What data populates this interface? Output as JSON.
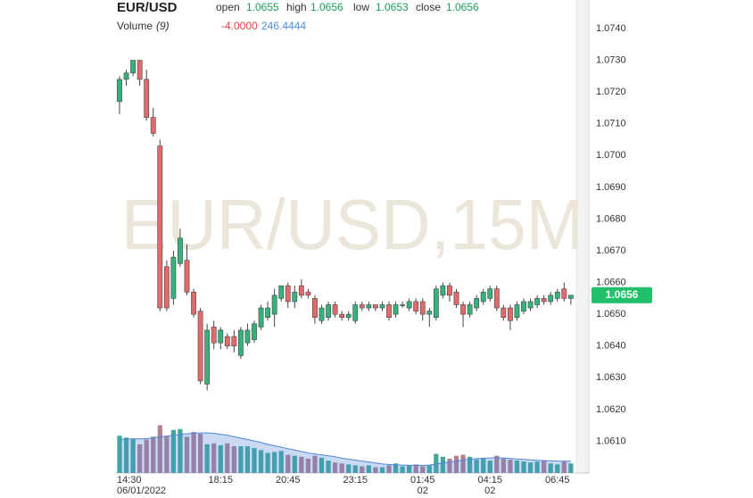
{
  "chart_data": {
    "type": "candlestick",
    "title": "EUR/USD",
    "watermark": "EUR/USD,15M",
    "header": {
      "open": "open",
      "high": "high",
      "low": "low",
      "close": "close",
      "volume_label": "Volume",
      "volume_period": "(9)",
      "volume_change": "-4.0000"
    },
    "categories": [
      "14:30",
      null,
      null,
      null,
      null,
      null,
      null,
      null,
      null,
      null,
      null,
      null,
      null,
      null,
      null,
      "18:15",
      null,
      null,
      null,
      null,
      null,
      null,
      null,
      null,
      null,
      "20:45",
      null,
      null,
      null,
      null,
      null,
      null,
      null,
      null,
      null,
      "23:15",
      null,
      null,
      null,
      null,
      null,
      null,
      null,
      null,
      null,
      "01:45",
      null,
      null,
      null,
      null,
      null,
      null,
      null,
      null,
      null,
      "04:15",
      null,
      null,
      null,
      null,
      null,
      null,
      null,
      null,
      null,
      "06:45",
      null,
      null
    ],
    "category_sublabels": [
      "06/01/2022",
      null,
      null,
      null,
      null,
      null,
      null,
      null,
      null,
      null,
      null,
      null,
      null,
      null,
      null,
      null,
      null,
      null,
      null,
      null,
      null,
      null,
      null,
      null,
      null,
      null,
      null,
      null,
      null,
      null,
      null,
      null,
      null,
      null,
      null,
      null,
      null,
      null,
      null,
      null,
      null,
      null,
      null,
      null,
      null,
      "02",
      null,
      null,
      null,
      null,
      null,
      null,
      null,
      null,
      null,
      "02",
      null,
      null,
      null,
      null,
      null,
      null,
      null,
      null,
      null,
      null,
      null,
      null
    ],
    "open": [
      1.0717,
      1.0724,
      1.0726,
      1.073,
      1.0724,
      1.0712,
      1.0703,
      1.0665,
      1.0655,
      1.0666,
      1.0667,
      1.0657,
      1.0651,
      1.0628,
      1.0646,
      1.0641,
      1.0643,
      1.0643,
      1.0637,
      1.0641,
      1.0642,
      1.0646,
      1.0649,
      1.065,
      1.0655,
      1.0659,
      1.0654,
      1.0659,
      1.0657,
      1.0655,
      1.0648,
      1.0649,
      1.0653,
      1.065,
      1.0649,
      1.0648,
      1.0653,
      1.0652,
      1.0653,
      1.0652,
      1.0653,
      1.065,
      1.0653,
      1.0652,
      1.0654,
      1.0654,
      1.065,
      1.0649,
      1.0656,
      1.0659,
      1.0657,
      1.0653,
      1.065,
      1.0652,
      1.0654,
      1.0655,
      1.0658,
      1.0652,
      1.0652,
      1.0649,
      1.0651,
      1.0652,
      1.0653,
      1.0655,
      1.0654,
      1.0655,
      1.0658,
      1.0655
    ],
    "high": [
      1.0725,
      1.0727,
      1.073,
      1.073,
      1.0727,
      1.0715,
      1.0705,
      1.0667,
      1.067,
      1.0677,
      1.0672,
      1.0658,
      1.0652,
      1.0647,
      1.0648,
      1.0646,
      1.0644,
      1.0645,
      1.0646,
      1.0647,
      1.0648,
      1.0653,
      1.0654,
      1.0658,
      1.0659,
      1.066,
      1.0659,
      1.0661,
      1.0658,
      1.0656,
      1.0653,
      1.0654,
      1.0654,
      1.0651,
      1.0651,
      1.0654,
      1.0654,
      1.0654,
      1.0653,
      1.0654,
      1.0654,
      1.0654,
      1.0654,
      1.0655,
      1.0655,
      1.0655,
      1.0652,
      1.0659,
      1.066,
      1.066,
      1.0658,
      1.0654,
      1.0654,
      1.0656,
      1.0658,
      1.0659,
      1.0659,
      1.0653,
      1.0653,
      1.0654,
      1.0655,
      1.0655,
      1.0656,
      1.0656,
      1.0657,
      1.0658,
      1.066,
      1.0656
    ],
    "low": [
      1.0713,
      1.0722,
      1.0725,
      1.0722,
      1.0711,
      1.0706,
      1.0651,
      1.0651,
      1.0653,
      1.0665,
      1.0656,
      1.0649,
      1.0628,
      1.0626,
      1.0639,
      1.0639,
      1.0639,
      1.0638,
      1.0636,
      1.064,
      1.0641,
      1.0645,
      1.0648,
      1.0646,
      1.0654,
      1.0652,
      1.0652,
      1.0655,
      1.0655,
      1.0647,
      1.0647,
      1.0648,
      1.0649,
      1.0648,
      1.0648,
      1.0647,
      1.0651,
      1.0651,
      1.0651,
      1.0651,
      1.0648,
      1.0649,
      1.0652,
      1.0651,
      1.065,
      1.0648,
      1.0646,
      1.0648,
      1.0655,
      1.0654,
      1.0652,
      1.0646,
      1.0649,
      1.0651,
      1.0653,
      1.0654,
      1.0651,
      1.0648,
      1.0645,
      1.0648,
      1.065,
      1.0651,
      1.0652,
      1.0653,
      1.0653,
      1.0654,
      1.0654,
      1.0653
    ],
    "close": [
      1.0724,
      1.0726,
      1.073,
      1.0724,
      1.0712,
      1.0707,
      1.0652,
      1.0652,
      1.0668,
      1.0674,
      1.0657,
      1.065,
      1.0629,
      1.0645,
      1.0641,
      1.0645,
      1.064,
      1.064,
      1.0645,
      1.0645,
      1.0647,
      1.0652,
      1.0652,
      1.0656,
      1.0659,
      1.0654,
      1.0657,
      1.0656,
      1.0656,
      1.0649,
      1.0652,
      1.0653,
      1.065,
      1.0649,
      1.065,
      1.0653,
      1.0652,
      1.0653,
      1.0652,
      1.0653,
      1.0649,
      1.0653,
      1.0653,
      1.0654,
      1.0651,
      1.065,
      1.0651,
      1.0658,
      1.0659,
      1.0656,
      1.0653,
      1.065,
      1.0653,
      1.0655,
      1.0657,
      1.0658,
      1.0652,
      1.0649,
      1.0648,
      1.0653,
      1.0654,
      1.0654,
      1.0655,
      1.0654,
      1.0656,
      1.0657,
      1.0655,
      1.0656
    ],
    "volume": [
      780,
      740,
      720,
      600,
      700,
      760,
      1000,
      780,
      900,
      920,
      760,
      860,
      820,
      600,
      620,
      580,
      620,
      560,
      560,
      560,
      520,
      480,
      420,
      440,
      460,
      380,
      360,
      340,
      300,
      360,
      320,
      260,
      220,
      200,
      180,
      160,
      140,
      160,
      120,
      120,
      160,
      200,
      140,
      160,
      180,
      140,
      160,
      400,
      340,
      300,
      360,
      380,
      340,
      280,
      300,
      260,
      360,
      300,
      280,
      260,
      240,
      220,
      240,
      260,
      200,
      180,
      240,
      200
    ],
    "volume_ma": [
      700,
      710,
      715,
      715,
      720,
      730,
      760,
      770,
      790,
      810,
      820,
      830,
      840,
      840,
      830,
      810,
      790,
      760,
      730,
      700,
      670,
      640,
      600,
      570,
      540,
      510,
      480,
      450,
      420,
      400,
      380,
      360,
      340,
      310,
      290,
      270,
      250,
      230,
      210,
      190,
      180,
      170,
      165,
      160,
      160,
      160,
      165,
      190,
      210,
      230,
      250,
      270,
      290,
      300,
      310,
      315,
      320,
      315,
      305,
      295,
      285,
      275,
      265,
      260,
      255,
      250,
      248,
      246.4444
    ],
    "ylim": [
      1.06,
      1.0749
    ],
    "yticks": [
      {
        "value": 1.074,
        "label": "1.0740"
      },
      {
        "value": 1.073,
        "label": "1.0730"
      },
      {
        "value": 1.072,
        "label": "1.0720"
      },
      {
        "value": 1.071,
        "label": "1.0710"
      },
      {
        "value": 1.07,
        "label": "1.0700"
      },
      {
        "value": 1.069,
        "label": "1.0690"
      },
      {
        "value": 1.068,
        "label": "1.0680"
      },
      {
        "value": 1.067,
        "label": "1.0670"
      },
      {
        "value": 1.066,
        "label": "1.0660"
      },
      {
        "value": 1.065,
        "label": "1.0650"
      },
      {
        "value": 1.064,
        "label": "1.0640"
      },
      {
        "value": 1.063,
        "label": "1.0630"
      },
      {
        "value": 1.062,
        "label": "1.0620"
      },
      {
        "value": 1.061,
        "label": "1.0610"
      }
    ],
    "vlim": [
      0,
      2800
    ],
    "up_color": "#35b27c",
    "down_color": "#e26a6a",
    "volume_up_color": "#3ea99b",
    "volume_down_color": "#b47f91",
    "ma_color": "#4f86d6"
  }
}
